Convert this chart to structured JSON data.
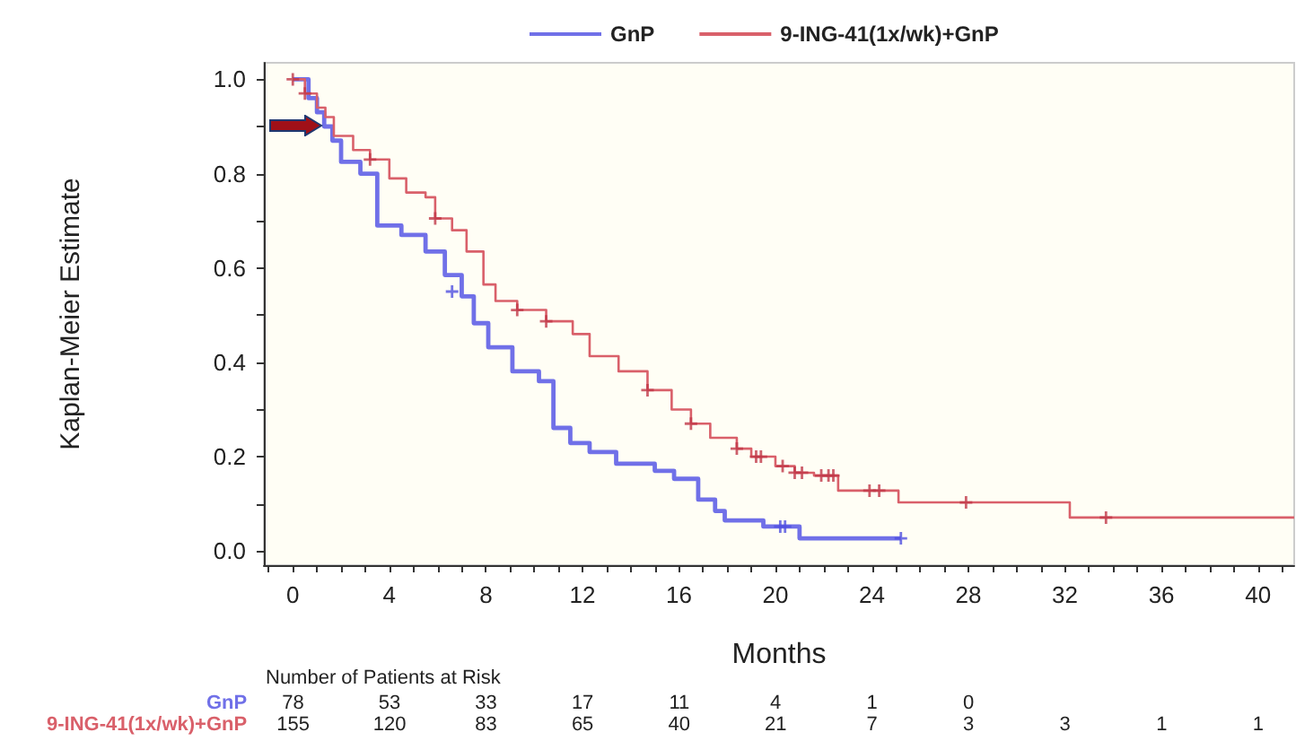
{
  "chart_data": {
    "type": "step",
    "xlabel": "Months",
    "ylabel": "Kaplan-Meier Estimate",
    "xlim": [
      -1.2,
      41.5
    ],
    "xticks": [
      {
        "value": -1,
        "label": null
      },
      0,
      {
        "value": 1,
        "label": null
      },
      {
        "value": 2,
        "label": null
      },
      {
        "value": 3,
        "label": null
      },
      4,
      {
        "value": 5,
        "label": null
      },
      {
        "value": 6,
        "label": null
      },
      {
        "value": 7,
        "label": null
      },
      8,
      {
        "value": 9,
        "label": null
      },
      {
        "value": 10,
        "label": null
      },
      {
        "value": 11,
        "label": null
      },
      12,
      {
        "value": 13,
        "label": null
      },
      {
        "value": 14,
        "label": null
      },
      {
        "value": 15,
        "label": null
      },
      16,
      {
        "value": 17,
        "label": null
      },
      {
        "value": 18,
        "label": null
      },
      {
        "value": 19,
        "label": null
      },
      20,
      {
        "value": 21,
        "label": null
      },
      {
        "value": 22,
        "label": null
      },
      {
        "value": 23,
        "label": null
      },
      24,
      {
        "value": 25,
        "label": null
      },
      {
        "value": 26,
        "label": null
      },
      {
        "value": 27,
        "label": null
      },
      28,
      {
        "value": 29,
        "label": null
      },
      {
        "value": 30,
        "label": null
      },
      {
        "value": 31,
        "label": null
      },
      32,
      {
        "value": 33,
        "label": null
      },
      {
        "value": 34,
        "label": null
      },
      {
        "value": 35,
        "label": null
      },
      36,
      {
        "value": 37,
        "label": null
      },
      {
        "value": 38,
        "label": null
      },
      {
        "value": 39,
        "label": null
      },
      40,
      {
        "value": 41,
        "label": null
      }
    ],
    "ylim": [
      -0.03,
      1.035
    ],
    "yticks": [
      {
        "value": 0,
        "label": "0.0"
      },
      {
        "value": 0.1,
        "label": null
      },
      0.2,
      {
        "value": 0.3,
        "label": null
      },
      0.4,
      {
        "value": 0.5,
        "label": null
      },
      0.6,
      {
        "value": 0.7,
        "label": null
      },
      0.8,
      {
        "value": 0.9,
        "label": null
      },
      {
        "value": 1,
        "label": "1.0"
      }
    ],
    "grid": false,
    "legend": "top",
    "series": [
      {
        "name": "GnP",
        "color": "#7070e8",
        "marker": "none",
        "x": [
          0,
          0.65,
          1.0,
          1.3,
          1.64,
          2.0,
          2.8,
          3.5,
          4.5,
          5.5,
          6.3,
          7.0,
          7.5,
          8.1,
          9.1,
          10.2,
          10.8,
          11.5,
          12.3,
          13.4,
          15.0,
          15.8,
          16.8,
          17.5,
          17.9,
          19.5,
          21.0,
          25.2
        ],
        "values": [
          1.0,
          0.96,
          0.93,
          0.9,
          0.87,
          0.825,
          0.8,
          0.69,
          0.67,
          0.635,
          0.585,
          0.54,
          0.483,
          0.432,
          0.381,
          0.36,
          0.261,
          0.229,
          0.21,
          0.185,
          0.17,
          0.153,
          0.109,
          0.085,
          0.065,
          0.052,
          0.027,
          0.027
        ]
      },
      {
        "name": "9-ING-41(1x/wk)+GnP",
        "color": "#d9606a",
        "marker": "none",
        "x": [
          0,
          0.5,
          1.0,
          1.35,
          1.7,
          2.5,
          3.2,
          4.0,
          4.7,
          5.5,
          5.9,
          6.6,
          7.2,
          7.9,
          8.4,
          9.3,
          10.5,
          11.6,
          12.3,
          13.5,
          14.7,
          15.7,
          16.5,
          17.3,
          18.4,
          19.0,
          20.0,
          20.8,
          21.6,
          22.6,
          25.1,
          32.2,
          41.5
        ],
        "values": [
          1.0,
          0.97,
          0.94,
          0.92,
          0.88,
          0.85,
          0.83,
          0.79,
          0.76,
          0.75,
          0.705,
          0.68,
          0.635,
          0.565,
          0.53,
          0.511,
          0.487,
          0.46,
          0.413,
          0.381,
          0.341,
          0.3,
          0.27,
          0.24,
          0.217,
          0.2,
          0.18,
          0.166,
          0.16,
          0.128,
          0.103,
          0.071,
          0.071
        ]
      },
      {
        "color": "#5050e0",
        "type": "scatter",
        "marker": "cross",
        "x": [
          6.6,
          20.2,
          20.4,
          25.2
        ],
        "values": [
          0.55,
          0.052,
          0.052,
          0.027
        ]
      },
      {
        "color": "#c03848",
        "type": "scatter",
        "marker": "cross",
        "x": [
          0,
          0.5,
          3.2,
          5.9,
          9.3,
          10.5,
          14.7,
          16.5,
          18.4,
          19.2,
          19.4,
          20.3,
          20.8,
          21.1,
          21.9,
          22.2,
          22.4,
          23.9,
          24.3,
          27.9,
          33.7
        ],
        "values": [
          1.0,
          0.97,
          0.83,
          0.705,
          0.511,
          0.487,
          0.341,
          0.27,
          0.217,
          0.2,
          0.2,
          0.18,
          0.166,
          0.166,
          0.16,
          0.16,
          0.16,
          0.128,
          0.128,
          0.103,
          0.071
        ]
      }
    ],
    "annotations": [
      "Number of Patients at Risk",
      "78 53 33 17 11 4 1 0",
      "155 120 83 65 40 21 7 3 3 1 1"
    ]
  }
}
